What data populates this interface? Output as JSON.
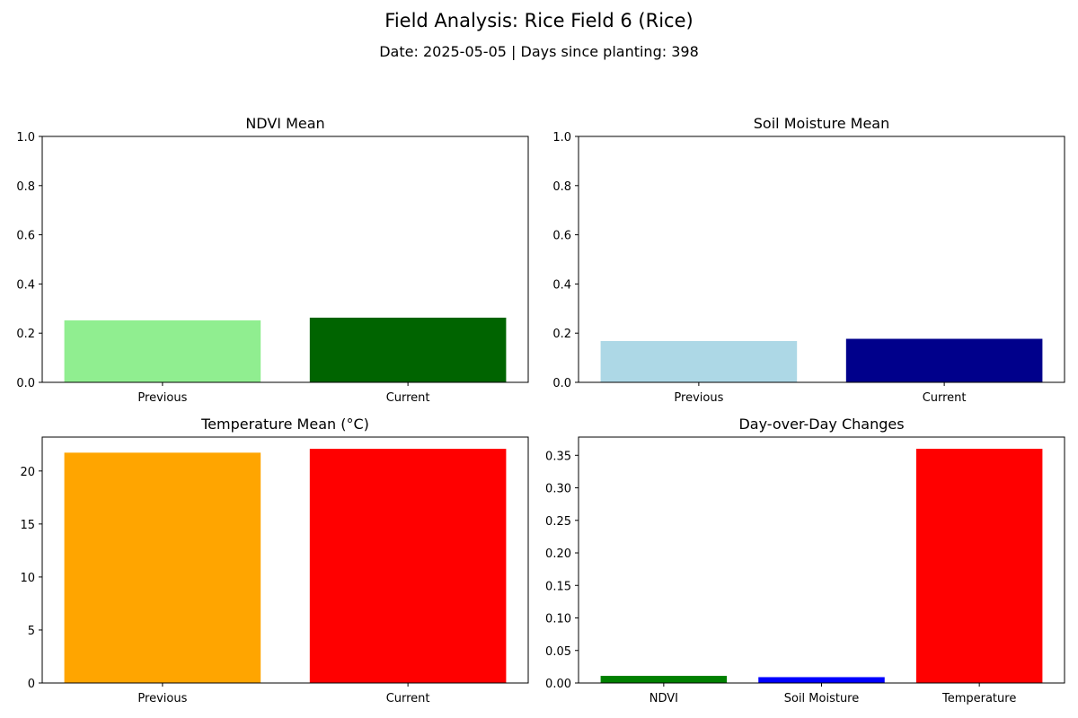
{
  "figure": {
    "title": "Field Analysis: Rice Field 6 (Rice)",
    "subtitle": "Date: 2025-05-05 | Days since planting: 398"
  },
  "chart_data": [
    {
      "type": "bar",
      "title": "NDVI Mean",
      "categories": [
        "Previous",
        "Current"
      ],
      "values": [
        0.252,
        0.263
      ],
      "colors": [
        "#90ee90",
        "#006400"
      ],
      "ylim": [
        0,
        1.0
      ],
      "yticks": [
        0.0,
        0.2,
        0.4,
        0.6,
        0.8,
        1.0
      ],
      "ytick_labels": [
        "0.0",
        "0.2",
        "0.4",
        "0.6",
        "0.8",
        "1.0"
      ],
      "xlabel": "",
      "ylabel": "",
      "grid": false
    },
    {
      "type": "bar",
      "title": "Soil Moisture Mean",
      "categories": [
        "Previous",
        "Current"
      ],
      "values": [
        0.168,
        0.177
      ],
      "colors": [
        "#add8e6",
        "#00008b"
      ],
      "ylim": [
        0,
        1.0
      ],
      "yticks": [
        0.0,
        0.2,
        0.4,
        0.6,
        0.8,
        1.0
      ],
      "ytick_labels": [
        "0.0",
        "0.2",
        "0.4",
        "0.6",
        "0.8",
        "1.0"
      ],
      "xlabel": "",
      "ylabel": "",
      "grid": false
    },
    {
      "type": "bar",
      "title": "Temperature Mean (°C)",
      "categories": [
        "Previous",
        "Current"
      ],
      "values": [
        21.73,
        22.09
      ],
      "colors": [
        "#ffa500",
        "#ff0000"
      ],
      "ylim": [
        0,
        23.2
      ],
      "yticks": [
        0,
        5,
        10,
        15,
        20
      ],
      "ytick_labels": [
        "0",
        "5",
        "10",
        "15",
        "20"
      ],
      "xlabel": "",
      "ylabel": "",
      "grid": false
    },
    {
      "type": "bar",
      "title": "Day-over-Day Changes",
      "categories": [
        "NDVI",
        "Soil Moisture",
        "Temperature"
      ],
      "values": [
        0.011,
        0.009,
        0.36
      ],
      "colors": [
        "#008000",
        "#0000ff",
        "#ff0000"
      ],
      "ylim": [
        0,
        0.378
      ],
      "yticks": [
        0.0,
        0.05,
        0.1,
        0.15,
        0.2,
        0.25,
        0.3,
        0.35
      ],
      "ytick_labels": [
        "0.00",
        "0.05",
        "0.10",
        "0.15",
        "0.20",
        "0.25",
        "0.30",
        "0.35"
      ],
      "xlabel": "",
      "ylabel": "",
      "grid": false
    }
  ]
}
